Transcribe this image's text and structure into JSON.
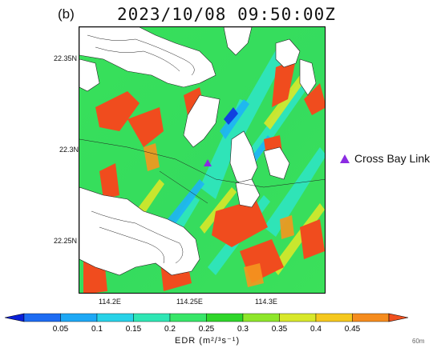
{
  "panel_label": "(b)",
  "title": "2023/10/08  09:50:00Z",
  "map": {
    "lat_ticks": [
      "22.35N",
      "22.3N",
      "22.25N"
    ],
    "lon_ticks": [
      "114.2E",
      "114.25E",
      "114.3E"
    ],
    "field": "EDR",
    "land_color": "#ffffff",
    "coastline_color": "#000000"
  },
  "legend": {
    "marker_color": "#8b2be2",
    "marker_shape": "triangle",
    "label": "Cross Bay Link"
  },
  "colorbar": {
    "title": "EDR (m²/³s⁻¹)",
    "ticks": [
      "0.05",
      "0.1",
      "0.15",
      "0.2",
      "0.25",
      "0.3",
      "0.35",
      "0.4",
      "0.45"
    ],
    "colors": [
      "#0a20d8",
      "#1e6cf2",
      "#1ea8f5",
      "#28d2e8",
      "#2ee6b4",
      "#37e668",
      "#2fd62a",
      "#8ee62a",
      "#d8e82a",
      "#f5c81e",
      "#f58c1e",
      "#f0501e"
    ]
  },
  "height_note": "60m"
}
